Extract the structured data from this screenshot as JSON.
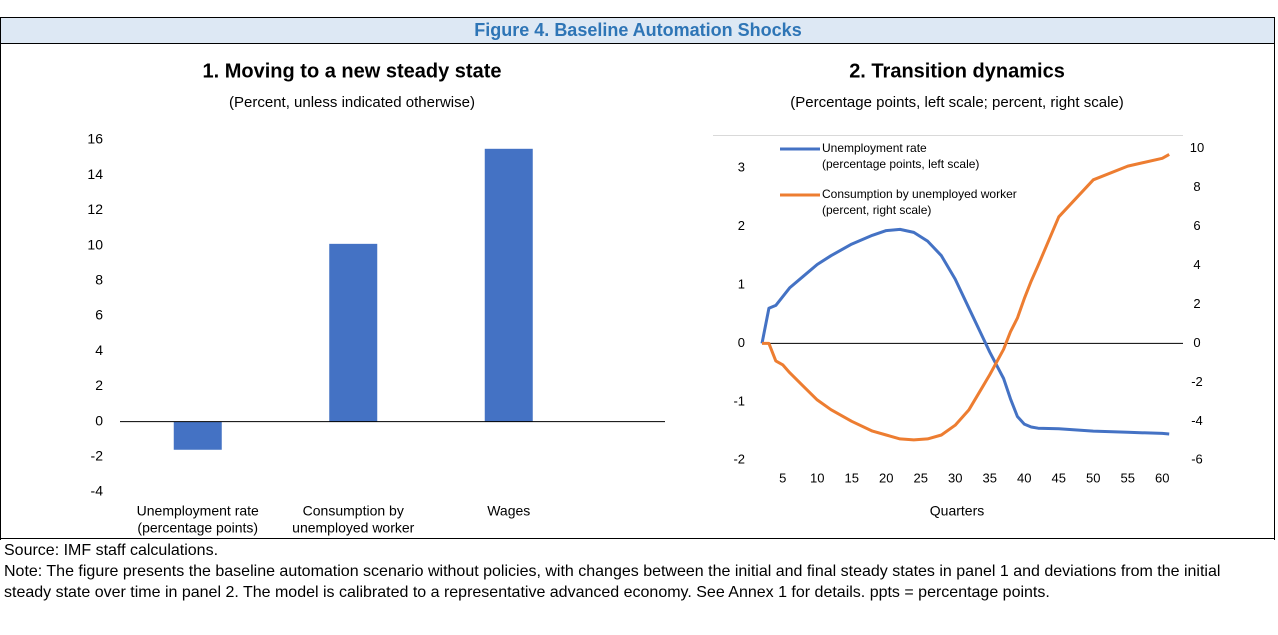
{
  "header": {
    "title": "Figure 4. Baseline Automation Shocks"
  },
  "chart_data": [
    {
      "type": "bar",
      "title": "1. Moving to a new steady state",
      "subtitle": "(Percent, unless indicated otherwise)",
      "categories": [
        [
          "Unemployment rate",
          "(percentage points)"
        ],
        [
          "Consumption by",
          "unemployed worker"
        ],
        [
          "Wages"
        ]
      ],
      "values": [
        -1.6,
        10.1,
        15.5
      ],
      "color": "#4472c4",
      "ylim": [
        -4,
        16
      ],
      "yticks": [
        -4,
        -2,
        0,
        2,
        4,
        6,
        8,
        10,
        12,
        14,
        16
      ],
      "grid": false
    },
    {
      "type": "line",
      "title": "2. Transition dynamics",
      "subtitle": "(Percentage points, left scale; percent, right scale)",
      "x_label": "Quarters",
      "x": [
        2,
        3,
        4,
        5,
        6,
        8,
        10,
        12,
        15,
        18,
        20,
        22,
        24,
        26,
        28,
        30,
        32,
        34,
        35,
        37,
        38,
        39,
        40,
        41,
        42,
        45,
        50,
        55,
        60,
        61
      ],
      "series": [
        {
          "name": [
            "Unemployment rate",
            "(percentage points, left scale)"
          ],
          "color": "#4472c4",
          "axis": "y",
          "values": [
            0,
            0.6,
            0.65,
            0.8,
            0.95,
            1.15,
            1.35,
            1.5,
            1.7,
            1.85,
            1.93,
            1.95,
            1.9,
            1.75,
            1.5,
            1.1,
            0.6,
            0.1,
            -0.15,
            -0.6,
            -0.95,
            -1.25,
            -1.38,
            -1.43,
            -1.45,
            -1.46,
            -1.5,
            -1.52,
            -1.54,
            -1.55
          ]
        },
        {
          "name": [
            "Consumption by unemployed worker",
            "(percent, right scale)"
          ],
          "color": "#ed7d31",
          "axis": "y2",
          "values": [
            0,
            0,
            -0.9,
            -1.1,
            -1.5,
            -2.2,
            -2.9,
            -3.4,
            -4.0,
            -4.5,
            -4.7,
            -4.9,
            -4.95,
            -4.9,
            -4.7,
            -4.2,
            -3.4,
            -2.2,
            -1.6,
            -0.3,
            0.6,
            1.3,
            2.3,
            3.2,
            4.0,
            6.5,
            8.4,
            9.1,
            9.5,
            9.7
          ]
        }
      ],
      "xlim": [
        2,
        63
      ],
      "xticks": [
        5,
        10,
        15,
        20,
        25,
        30,
        35,
        40,
        45,
        50,
        55,
        60
      ],
      "ylim": [
        -2.2,
        3.6
      ],
      "yticks": [
        -2,
        -1,
        0,
        1,
        2,
        3
      ],
      "y2lim": [
        -6.6,
        10.8
      ],
      "y2ticks": [
        -6,
        -4,
        -2,
        0,
        2,
        4,
        6,
        8,
        10
      ],
      "legend": "top-left"
    }
  ],
  "footer": {
    "source": "Source: IMF staff calculations.",
    "note": "Note: The figure presents the baseline automation scenario without policies, with changes between the initial and final steady states in panel 1 and deviations from the initial steady state over time in panel 2. The model is calibrated to a representative advanced economy. See Annex 1 for details. ppts = percentage points."
  }
}
